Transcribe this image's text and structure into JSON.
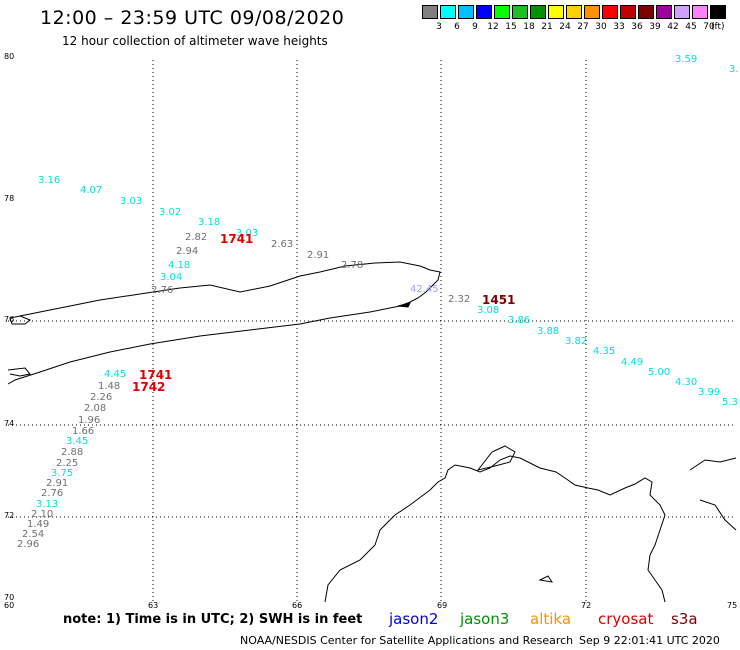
{
  "header": {
    "title": "12:00 – 23:59 UTC 09/08/2020",
    "subtitle": "12 hour collection of altimeter wave heights"
  },
  "legend": {
    "colors": [
      "#808080",
      "#00ffff",
      "#00bfff",
      "#0000ff",
      "#00ff00",
      "#20c020",
      "#009000",
      "#ffff00",
      "#ffd000",
      "#ff9000",
      "#ff0000",
      "#c00000",
      "#800000",
      "#a000a0",
      "#d0a0ff",
      "#ff80ff",
      "#000000"
    ],
    "labels": [
      "3",
      "6",
      "9",
      "12",
      "15",
      "18",
      "21",
      "24",
      "27",
      "30",
      "33",
      "36",
      "39",
      "42",
      "45",
      "70"
    ],
    "unit": "(ft)"
  },
  "axes": {
    "lat_labels": [
      "80",
      "78",
      "76",
      "74",
      "72",
      "70"
    ],
    "lon_labels": [
      "60",
      "63",
      "66",
      "69",
      "72",
      "75"
    ]
  },
  "observations": [
    {
      "v": "3.59",
      "c": "#00e0e0"
    },
    {
      "v": "3.",
      "c": "#00e0e0"
    },
    {
      "v": "3.16",
      "c": "#00e0e0"
    },
    {
      "v": "4.07",
      "c": "#00e0e0"
    },
    {
      "v": "3.03",
      "c": "#00e0e0"
    },
    {
      "v": "3.02",
      "c": "#00e0e0"
    },
    {
      "v": "3.18",
      "c": "#00e0e0"
    },
    {
      "v": "3.03",
      "c": "#00e0e0"
    },
    {
      "v": "2.82",
      "c": "#707070"
    },
    {
      "v": "2.94",
      "c": "#707070"
    },
    {
      "v": "2.63",
      "c": "#707070"
    },
    {
      "v": "2.91",
      "c": "#707070"
    },
    {
      "v": "2.78",
      "c": "#707070"
    },
    {
      "v": "4.18",
      "c": "#00e0e0"
    },
    {
      "v": "3.04",
      "c": "#00e0e0"
    },
    {
      "v": "2.76",
      "c": "#707070"
    },
    {
      "v": "42.45",
      "c": "#a0a0ff"
    },
    {
      "v": "2.32",
      "c": "#707070"
    },
    {
      "v": "3.08",
      "c": "#00e0e0"
    },
    {
      "v": "3.86",
      "c": "#00e0e0"
    },
    {
      "v": "3.88",
      "c": "#00e0e0"
    },
    {
      "v": "3.82",
      "c": "#00e0e0"
    },
    {
      "v": "4.35",
      "c": "#00e0e0"
    },
    {
      "v": "4.49",
      "c": "#00e0e0"
    },
    {
      "v": "5.00",
      "c": "#00e0e0"
    },
    {
      "v": "4.30",
      "c": "#00e0e0"
    },
    {
      "v": "3.99",
      "c": "#00e0e0"
    },
    {
      "v": "5.3",
      "c": "#00e0e0"
    },
    {
      "v": "4.45",
      "c": "#00e0e0"
    },
    {
      "v": "1.48",
      "c": "#707070"
    },
    {
      "v": "2.26",
      "c": "#707070"
    },
    {
      "v": "2.08",
      "c": "#707070"
    },
    {
      "v": "1.96",
      "c": "#707070"
    },
    {
      "v": "1.66",
      "c": "#707070"
    },
    {
      "v": "3.45",
      "c": "#00e0e0"
    },
    {
      "v": "2.88",
      "c": "#707070"
    },
    {
      "v": "2.25",
      "c": "#707070"
    },
    {
      "v": "3.75",
      "c": "#00e0e0"
    },
    {
      "v": "2.91",
      "c": "#707070"
    },
    {
      "v": "2.76",
      "c": "#707070"
    },
    {
      "v": "3.13",
      "c": "#00e0e0"
    },
    {
      "v": "2.10",
      "c": "#707070"
    },
    {
      "v": "1.49",
      "c": "#707070"
    },
    {
      "v": "2.54",
      "c": "#707070"
    },
    {
      "v": "2.96",
      "c": "#707070"
    }
  ],
  "pass_times": [
    {
      "v": "1741",
      "c": "#e00000"
    },
    {
      "v": "1451",
      "c": "#800000"
    },
    {
      "v": "1741",
      "c": "#e00000"
    },
    {
      "v": "1742",
      "c": "#e00000"
    }
  ],
  "note": "note:  1) Time is in UTC;  2) SWH is in feet",
  "satellites": [
    {
      "name": "jason2",
      "color": "#0000e0"
    },
    {
      "name": "jason3",
      "color": "#009000"
    },
    {
      "name": "altika",
      "color": "#ff9000"
    },
    {
      "name": "cryosat",
      "color": "#e00000"
    },
    {
      "name": "s3a",
      "color": "#800000"
    }
  ],
  "footer": {
    "org": "NOAA/NESDIS Center for Satellite Applications and Research",
    "timestamp": "Sep  9 22:01:41 UTC 2020"
  }
}
